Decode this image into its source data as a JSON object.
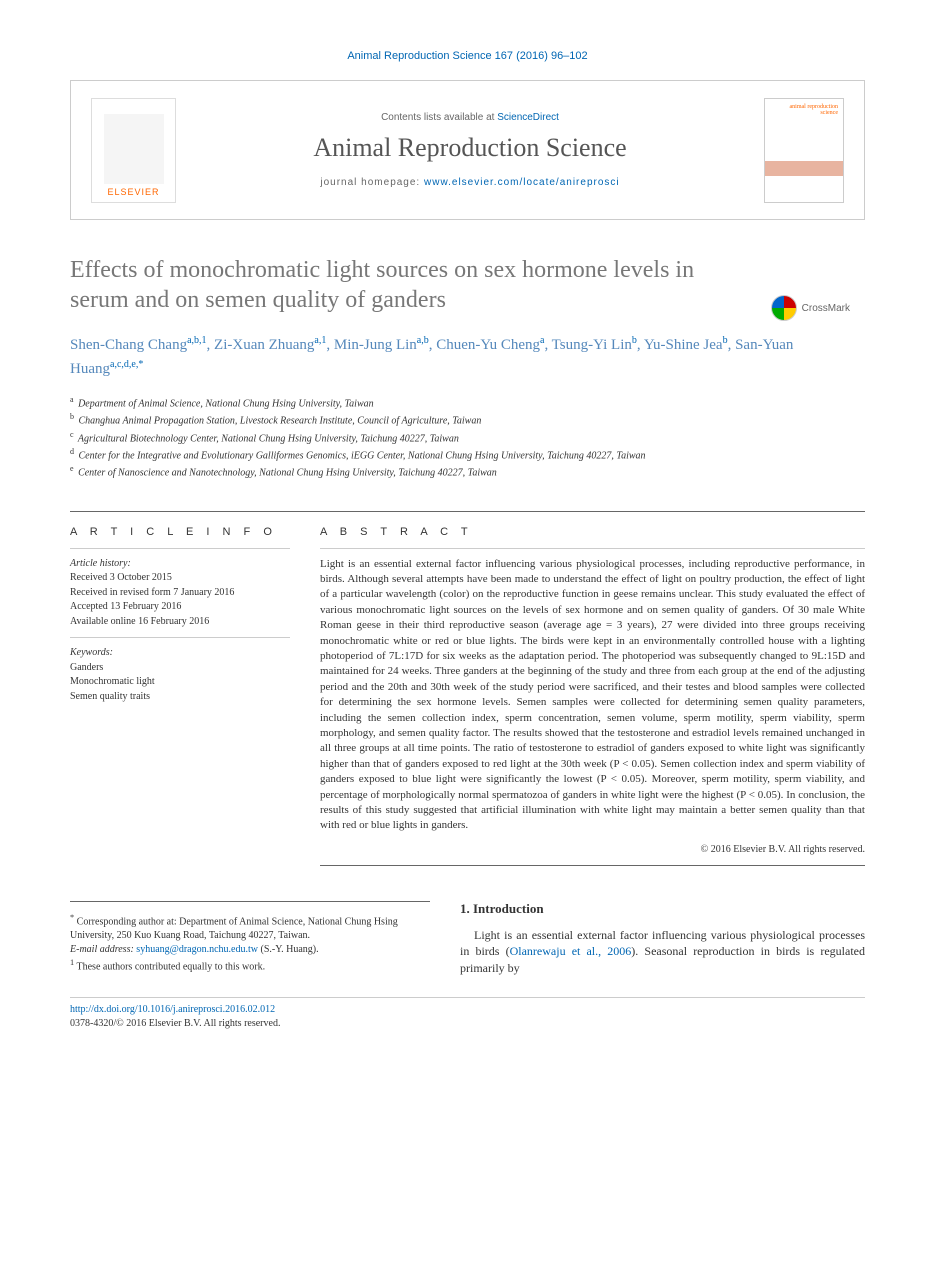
{
  "journal_ref": "Animal Reproduction Science 167 (2016) 96–102",
  "header": {
    "contents_prefix": "Contents lists available at ",
    "contents_link": "ScienceDirect",
    "journal_title": "Animal Reproduction Science",
    "homepage_prefix": "journal homepage: ",
    "homepage_url": "www.elsevier.com/locate/anireprosci",
    "elsevier": "ELSEVIER"
  },
  "crossmark": "CrossMark",
  "title": "Effects of monochromatic light sources on sex hormone levels in serum and on semen quality of ganders",
  "authors_html": "Shen-Chang Chang<sup>a,b,1</sup>, Zi-Xuan Zhuang<sup>a,1</sup>, Min-Jung Lin<sup>a,b</sup>, Chuen-Yu Cheng<sup>a</sup>, Tsung-Yi Lin<sup>b</sup>, Yu-Shine Jea<sup>b</sup>, San-Yuan Huang<sup>a,c,d,e,*</sup>",
  "affiliations": [
    {
      "sup": "a",
      "text": "Department of Animal Science, National Chung Hsing University, Taiwan"
    },
    {
      "sup": "b",
      "text": "Changhua Animal Propagation Station, Livestock Research Institute, Council of Agriculture, Taiwan"
    },
    {
      "sup": "c",
      "text": "Agricultural Biotechnology Center, National Chung Hsing University, Taichung 40227, Taiwan"
    },
    {
      "sup": "d",
      "text": "Center for the Integrative and Evolutionary Galliformes Genomics, iEGG Center, National Chung Hsing University, Taichung 40227, Taiwan"
    },
    {
      "sup": "e",
      "text": "Center of Nanoscience and Nanotechnology, National Chung Hsing University, Taichung 40227, Taiwan"
    }
  ],
  "article_info": {
    "heading": "A R T I C L E   I N F O",
    "history_label": "Article history:",
    "history": [
      "Received 3 October 2015",
      "Received in revised form 7 January 2016",
      "Accepted 13 February 2016",
      "Available online 16 February 2016"
    ],
    "keywords_label": "Keywords:",
    "keywords": [
      "Ganders",
      "Monochromatic light",
      "Semen quality traits"
    ]
  },
  "abstract": {
    "heading": "A B S T R A C T",
    "text": "Light is an essential external factor influencing various physiological processes, including reproductive performance, in birds. Although several attempts have been made to understand the effect of light on poultry production, the effect of light of a particular wavelength (color) on the reproductive function in geese remains unclear. This study evaluated the effect of various monochromatic light sources on the levels of sex hormone and on semen quality of ganders. Of 30 male White Roman geese in their third reproductive season (average age = 3 years), 27 were divided into three groups receiving monochromatic white or red or blue lights. The birds were kept in an environmentally controlled house with a lighting photoperiod of 7L:17D for six weeks as the adaptation period. The photoperiod was subsequently changed to 9L:15D and maintained for 24 weeks. Three ganders at the beginning of the study and three from each group at the end of the adjusting period and the 20th and 30th week of the study period were sacrificed, and their testes and blood samples were collected for determining the sex hormone levels. Semen samples were collected for determining semen quality parameters, including the semen collection index, sperm concentration, semen volume, sperm motility, sperm viability, sperm morphology, and semen quality factor. The results showed that the testosterone and estradiol levels remained unchanged in all three groups at all time points. The ratio of testosterone to estradiol of ganders exposed to white light was significantly higher than that of ganders exposed to red light at the 30th week (P < 0.05). Semen collection index and sperm viability of ganders exposed to blue light were significantly the lowest (P < 0.05). Moreover, sperm motility, sperm viability, and percentage of morphologically normal spermatozoa of ganders in white light were the highest (P < 0.05). In conclusion, the results of this study suggested that artificial illumination with white light may maintain a better semen quality than that with red or blue lights in ganders.",
    "copyright": "© 2016 Elsevier B.V. All rights reserved."
  },
  "footer": {
    "corresponding": "Corresponding author at: Department of Animal Science, National Chung Hsing University, 250 Kuo Kuang Road, Taichung 40227, Taiwan.",
    "email_label": "E-mail address: ",
    "email": "syhuang@dragon.nchu.edu.tw",
    "email_suffix": " (S.-Y. Huang).",
    "equal": "These authors contributed equally to this work.",
    "doi": "http://dx.doi.org/10.1016/j.anireprosci.2016.02.012",
    "issn_copyright": "0378-4320/© 2016 Elsevier B.V. All rights reserved."
  },
  "intro": {
    "heading": "1.  Introduction",
    "text_before_ref": "Light is an essential external factor influencing various physiological processes in birds (",
    "ref": "Olanrewaju et al., 2006",
    "text_after_ref": "). Seasonal reproduction in birds is regulated primarily by"
  },
  "colors": {
    "link": "#0066b3",
    "elsevier_orange": "#ff6600",
    "author_blue": "#5588bb",
    "title_gray": "#777777"
  }
}
